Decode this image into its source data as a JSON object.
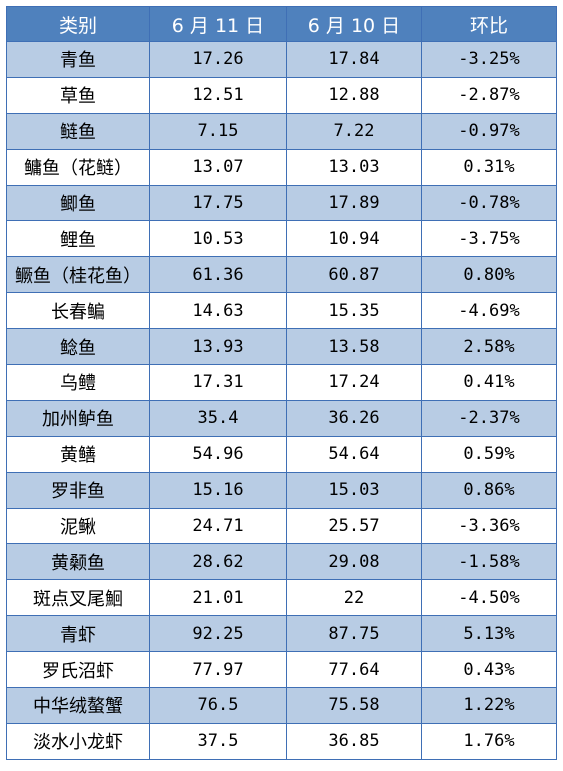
{
  "table": {
    "headers": [
      "类别",
      "6 月 11 日",
      "6 月 10 日",
      "环比"
    ],
    "rows": [
      {
        "name": "青鱼",
        "jun11": "17.26",
        "jun10": "17.84",
        "change": "-3.25%"
      },
      {
        "name": "草鱼",
        "jun11": "12.51",
        "jun10": "12.88",
        "change": "-2.87%"
      },
      {
        "name": "鲢鱼",
        "jun11": "7.15",
        "jun10": "7.22",
        "change": "-0.97%"
      },
      {
        "name": "鳙鱼（花鲢）",
        "jun11": "13.07",
        "jun10": "13.03",
        "change": "0.31%"
      },
      {
        "name": "鲫鱼",
        "jun11": "17.75",
        "jun10": "17.89",
        "change": "-0.78%"
      },
      {
        "name": "鲤鱼",
        "jun11": "10.53",
        "jun10": "10.94",
        "change": "-3.75%"
      },
      {
        "name": "鳜鱼（桂花鱼）",
        "jun11": "61.36",
        "jun10": "60.87",
        "change": "0.80%"
      },
      {
        "name": "长春鳊",
        "jun11": "14.63",
        "jun10": "15.35",
        "change": "-4.69%"
      },
      {
        "name": "鲶鱼",
        "jun11": "13.93",
        "jun10": "13.58",
        "change": "2.58%"
      },
      {
        "name": "乌鳢",
        "jun11": "17.31",
        "jun10": "17.24",
        "change": "0.41%"
      },
      {
        "name": "加州鲈鱼",
        "jun11": "35.4",
        "jun10": "36.26",
        "change": "-2.37%"
      },
      {
        "name": "黄鳝",
        "jun11": "54.96",
        "jun10": "54.64",
        "change": "0.59%"
      },
      {
        "name": "罗非鱼",
        "jun11": "15.16",
        "jun10": "15.03",
        "change": "0.86%"
      },
      {
        "name": "泥鳅",
        "jun11": "24.71",
        "jun10": "25.57",
        "change": "-3.36%"
      },
      {
        "name": "黄颡鱼",
        "jun11": "28.62",
        "jun10": "29.08",
        "change": "-1.58%"
      },
      {
        "name": "斑点叉尾鮰",
        "jun11": "21.01",
        "jun10": "22",
        "change": "-4.50%"
      },
      {
        "name": "青虾",
        "jun11": "92.25",
        "jun10": "87.75",
        "change": "5.13%"
      },
      {
        "name": "罗氏沼虾",
        "jun11": "77.97",
        "jun10": "77.64",
        "change": "0.43%"
      },
      {
        "name": "中华绒螯蟹",
        "jun11": "76.5",
        "jun10": "75.58",
        "change": "1.22%"
      },
      {
        "name": "淡水小龙虾",
        "jun11": "37.5",
        "jun10": "36.85",
        "change": "1.76%"
      }
    ]
  },
  "colors": {
    "header_bg": "#4f81bd",
    "stripe_bg": "#b8cce4",
    "border": "#3f6fb5"
  }
}
